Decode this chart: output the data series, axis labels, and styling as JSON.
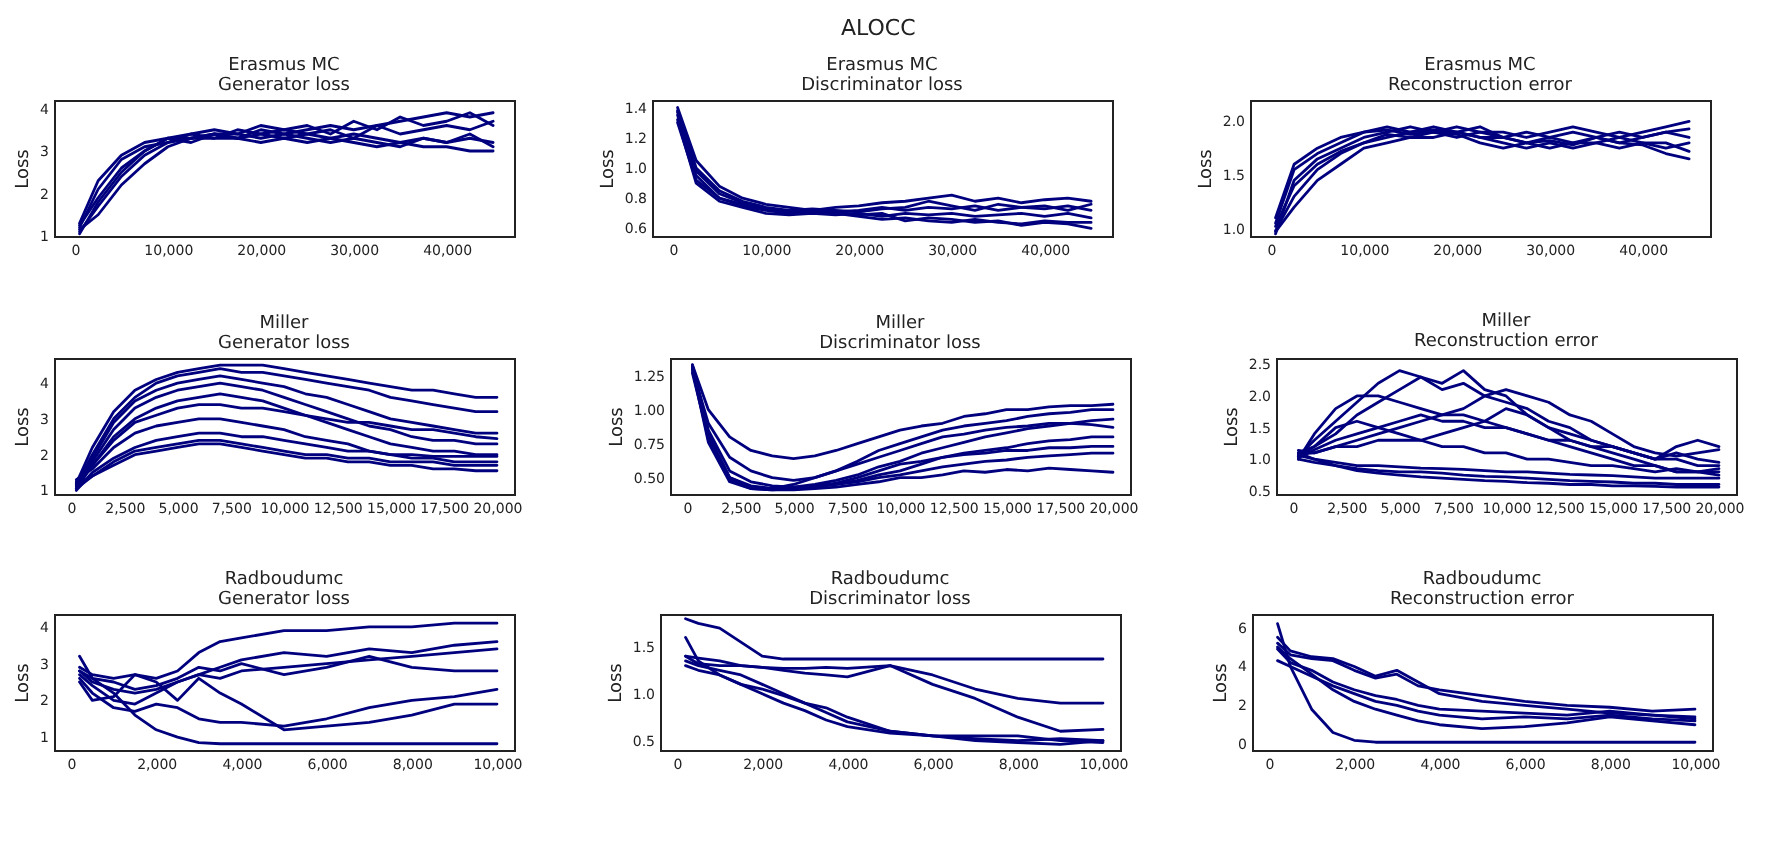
{
  "chart_data": [
    {
      "type": "line",
      "title": "Erasmus MC",
      "subtitle": "Generator loss",
      "ylabel": "Loss",
      "annotations": [
        "ALOCC"
      ],
      "x": [
        500,
        2500,
        5000,
        7500,
        10000,
        12500,
        15000,
        17500,
        20000,
        22500,
        25000,
        27500,
        30000,
        32500,
        35000,
        37500,
        40000,
        42500,
        45000
      ],
      "xlim": [
        -2250,
        47250
      ],
      "xticks": [
        {
          "value": 0,
          "label": "0"
        },
        {
          "value": 10000,
          "label": "10,000"
        },
        {
          "value": 20000,
          "label": "20,000"
        },
        {
          "value": 30000,
          "label": "30,000"
        },
        {
          "value": 40000,
          "label": "40,000"
        }
      ],
      "ylim": [
        1,
        4.2
      ],
      "yticks": [
        1,
        2,
        3,
        4
      ],
      "series": [
        {
          "color": "#00007f",
          "values": [
            1.25,
            1.9,
            2.6,
            3.0,
            3.3,
            3.3,
            3.4,
            3.3,
            3.5,
            3.4,
            3.5,
            3.6,
            3.5,
            3.6,
            3.7,
            3.8,
            3.9,
            3.8,
            3.9
          ]
        },
        {
          "color": "#00007f",
          "values": [
            1.1,
            1.7,
            2.4,
            2.9,
            3.2,
            3.4,
            3.3,
            3.5,
            3.4,
            3.3,
            3.4,
            3.3,
            3.2,
            3.1,
            3.2,
            3.1,
            3.1,
            3.0,
            3.0
          ]
        },
        {
          "color": "#00007f",
          "values": [
            1.2,
            2.1,
            2.8,
            3.1,
            3.2,
            3.3,
            3.3,
            3.3,
            3.4,
            3.5,
            3.4,
            3.5,
            3.3,
            3.6,
            3.4,
            3.5,
            3.6,
            3.5,
            3.7
          ]
        },
        {
          "color": "#00007f",
          "values": [
            1.15,
            1.5,
            2.2,
            2.7,
            3.1,
            3.3,
            3.4,
            3.3,
            3.2,
            3.3,
            3.2,
            3.3,
            3.4,
            3.3,
            3.2,
            3.3,
            3.2,
            3.3,
            3.2
          ]
        },
        {
          "color": "#00007f",
          "values": [
            1.3,
            2.3,
            2.9,
            3.2,
            3.3,
            3.2,
            3.4,
            3.4,
            3.6,
            3.5,
            3.6,
            3.4,
            3.7,
            3.5,
            3.8,
            3.6,
            3.7,
            3.9,
            3.6
          ]
        },
        {
          "color": "#00007f",
          "values": [
            1.05,
            1.8,
            2.5,
            3.0,
            3.3,
            3.4,
            3.5,
            3.4,
            3.3,
            3.4,
            3.3,
            3.2,
            3.3,
            3.2,
            3.1,
            3.3,
            3.2,
            3.4,
            3.1
          ]
        }
      ]
    },
    {
      "type": "line",
      "title": "Erasmus MC",
      "subtitle": "Discriminator loss",
      "ylabel": "Loss",
      "x": [
        500,
        2500,
        5000,
        7500,
        10000,
        12500,
        15000,
        17500,
        20000,
        22500,
        25000,
        27500,
        30000,
        32500,
        35000,
        37500,
        40000,
        42500,
        45000
      ],
      "xlim": [
        -2250,
        47250
      ],
      "xticks": [
        {
          "value": 0,
          "label": "0"
        },
        {
          "value": 10000,
          "label": "10,000"
        },
        {
          "value": 20000,
          "label": "20,000"
        },
        {
          "value": 30000,
          "label": "30,000"
        },
        {
          "value": 40000,
          "label": "40,000"
        }
      ],
      "ylim": [
        0.55,
        1.45
      ],
      "yticks": [
        0.6,
        0.8,
        {
          "value": 1,
          "label": "1.0"
        },
        1.2,
        1.4
      ],
      "series": [
        {
          "color": "#00007f",
          "values": [
            1.38,
            1.0,
            0.85,
            0.78,
            0.74,
            0.72,
            0.73,
            0.72,
            0.71,
            0.73,
            0.74,
            0.78,
            0.75,
            0.72,
            0.76,
            0.74,
            0.73,
            0.75,
            0.72
          ]
        },
        {
          "color": "#00007f",
          "values": [
            1.35,
            0.95,
            0.8,
            0.75,
            0.72,
            0.7,
            0.71,
            0.7,
            0.68,
            0.66,
            0.67,
            0.65,
            0.64,
            0.66,
            0.64,
            0.63,
            0.65,
            0.64,
            0.64
          ]
        },
        {
          "color": "#00007f",
          "values": [
            1.4,
            1.05,
            0.88,
            0.8,
            0.76,
            0.74,
            0.72,
            0.74,
            0.75,
            0.77,
            0.78,
            0.8,
            0.82,
            0.78,
            0.8,
            0.77,
            0.79,
            0.8,
            0.78
          ]
        },
        {
          "color": "#00007f",
          "values": [
            1.32,
            0.9,
            0.78,
            0.74,
            0.7,
            0.69,
            0.7,
            0.69,
            0.7,
            0.68,
            0.7,
            0.69,
            0.7,
            0.68,
            0.69,
            0.7,
            0.68,
            0.7,
            0.67
          ]
        },
        {
          "color": "#00007f",
          "values": [
            1.37,
            0.98,
            0.83,
            0.77,
            0.73,
            0.71,
            0.72,
            0.71,
            0.72,
            0.74,
            0.72,
            0.74,
            0.73,
            0.75,
            0.72,
            0.74,
            0.75,
            0.72,
            0.76
          ]
        },
        {
          "color": "#00007f",
          "values": [
            1.3,
            0.92,
            0.8,
            0.76,
            0.73,
            0.71,
            0.7,
            0.71,
            0.69,
            0.7,
            0.65,
            0.67,
            0.66,
            0.64,
            0.65,
            0.62,
            0.64,
            0.63,
            0.6
          ]
        }
      ]
    },
    {
      "type": "line",
      "title": "Erasmus MC",
      "subtitle": "Reconstruction error",
      "ylabel": "Loss",
      "x": [
        500,
        2500,
        5000,
        7500,
        10000,
        12500,
        15000,
        17500,
        20000,
        22500,
        25000,
        27500,
        30000,
        32500,
        35000,
        37500,
        40000,
        42500,
        45000
      ],
      "xlim": [
        -2250,
        47250
      ],
      "xticks": [
        {
          "value": 0,
          "label": "0"
        },
        {
          "value": 10000,
          "label": "10,000"
        },
        {
          "value": 20000,
          "label": "20,000"
        },
        {
          "value": 30000,
          "label": "30,000"
        },
        {
          "value": 40000,
          "label": "40,000"
        }
      ],
      "ylim": [
        0.93,
        2.2
      ],
      "yticks": [
        {
          "value": 1,
          "label": "1.0"
        },
        1.5,
        {
          "value": 2,
          "label": "2.0"
        }
      ],
      "series": [
        {
          "color": "#00007f",
          "values": [
            0.95,
            1.45,
            1.65,
            1.75,
            1.85,
            1.9,
            1.95,
            1.9,
            1.85,
            1.9,
            1.85,
            1.8,
            1.85,
            1.8,
            1.85,
            1.8,
            1.85,
            1.9,
            1.85
          ]
        },
        {
          "color": "#00007f",
          "values": [
            0.98,
            1.3,
            1.55,
            1.7,
            1.8,
            1.85,
            1.9,
            1.95,
            1.9,
            1.85,
            1.8,
            1.75,
            1.8,
            1.75,
            1.8,
            1.85,
            1.8,
            1.75,
            1.8
          ]
        },
        {
          "color": "#00007f",
          "values": [
            1.05,
            1.55,
            1.7,
            1.8,
            1.9,
            1.92,
            1.88,
            1.9,
            1.95,
            1.9,
            1.9,
            1.85,
            1.9,
            1.95,
            1.9,
            1.85,
            1.9,
            1.95,
            2.0
          ]
        },
        {
          "color": "#00007f",
          "values": [
            0.97,
            1.2,
            1.45,
            1.6,
            1.75,
            1.8,
            1.85,
            1.85,
            1.9,
            1.85,
            1.85,
            1.8,
            1.75,
            1.8,
            1.8,
            1.75,
            1.8,
            1.8,
            1.72
          ]
        },
        {
          "color": "#00007f",
          "values": [
            1.1,
            1.6,
            1.75,
            1.85,
            1.9,
            1.95,
            1.9,
            1.92,
            1.9,
            1.95,
            1.85,
            1.9,
            1.85,
            1.9,
            1.85,
            1.9,
            1.85,
            1.9,
            1.93
          ]
        },
        {
          "color": "#00007f",
          "values": [
            1.02,
            1.4,
            1.6,
            1.72,
            1.8,
            1.88,
            1.85,
            1.9,
            1.88,
            1.8,
            1.75,
            1.8,
            1.82,
            1.78,
            1.85,
            1.8,
            1.78,
            1.7,
            1.65
          ]
        }
      ]
    },
    {
      "type": "line",
      "title": "Miller",
      "subtitle": "Generator loss",
      "ylabel": "Loss",
      "x": [
        250,
        1000,
        2000,
        3000,
        4000,
        5000,
        6000,
        7000,
        8000,
        9000,
        10000,
        11000,
        12000,
        13000,
        14000,
        15000,
        16000,
        17000,
        18000,
        19000,
        20000
      ],
      "xlim": [
        -800,
        20800
      ],
      "xticks": [
        {
          "value": 0,
          "label": "0"
        },
        {
          "value": 2500,
          "label": "2,500"
        },
        {
          "value": 5000,
          "label": "5,000"
        },
        {
          "value": 7500,
          "label": "7,500"
        },
        {
          "value": 10000,
          "label": "10,000"
        },
        {
          "value": 12500,
          "label": "12,500"
        },
        {
          "value": 15000,
          "label": "15,000"
        },
        {
          "value": 17500,
          "label": "17,500"
        },
        {
          "value": 20000,
          "label": "20,000"
        }
      ],
      "ylim": [
        0.9,
        4.7
      ],
      "yticks": [
        1,
        2,
        3,
        4
      ],
      "series": [
        {
          "color": "#00007f",
          "values": [
            1.2,
            2.2,
            3.2,
            3.8,
            4.1,
            4.3,
            4.4,
            4.5,
            4.5,
            4.5,
            4.4,
            4.3,
            4.2,
            4.1,
            4.0,
            3.9,
            3.8,
            3.8,
            3.7,
            3.6,
            3.6
          ]
        },
        {
          "color": "#00007f",
          "values": [
            1.15,
            2.0,
            3.0,
            3.6,
            4.0,
            4.2,
            4.3,
            4.4,
            4.3,
            4.3,
            4.2,
            4.1,
            4.0,
            3.9,
            3.8,
            3.6,
            3.5,
            3.4,
            3.3,
            3.2,
            3.2
          ]
        },
        {
          "color": "#00007f",
          "values": [
            1.25,
            1.9,
            2.9,
            3.5,
            3.8,
            4.0,
            4.1,
            4.2,
            4.1,
            4.0,
            3.9,
            3.7,
            3.6,
            3.4,
            3.2,
            3.0,
            2.9,
            2.8,
            2.7,
            2.6,
            2.6
          ]
        },
        {
          "color": "#00007f",
          "values": [
            1.1,
            1.8,
            2.7,
            3.3,
            3.6,
            3.8,
            3.9,
            4.0,
            3.9,
            3.8,
            3.6,
            3.4,
            3.2,
            3.0,
            2.8,
            2.7,
            2.5,
            2.4,
            2.4,
            2.3,
            2.3
          ]
        },
        {
          "color": "#00007f",
          "values": [
            1.2,
            1.7,
            2.5,
            3.0,
            3.3,
            3.5,
            3.6,
            3.7,
            3.6,
            3.5,
            3.3,
            3.1,
            2.9,
            2.7,
            2.5,
            2.3,
            2.2,
            2.1,
            2.1,
            2.0,
            2.0
          ]
        },
        {
          "color": "#00007f",
          "values": [
            1.05,
            1.7,
            2.4,
            2.9,
            3.1,
            3.3,
            3.4,
            3.4,
            3.3,
            3.3,
            3.2,
            3.1,
            3.0,
            2.9,
            2.9,
            2.8,
            2.7,
            2.7,
            2.6,
            2.5,
            2.45
          ]
        },
        {
          "color": "#00007f",
          "values": [
            1.3,
            1.6,
            2.2,
            2.6,
            2.8,
            2.9,
            3.0,
            3.0,
            2.9,
            2.8,
            2.7,
            2.5,
            2.4,
            2.3,
            2.1,
            2.0,
            1.9,
            1.9,
            1.8,
            1.8,
            1.8
          ]
        },
        {
          "color": "#00007f",
          "values": [
            1.0,
            1.5,
            1.9,
            2.2,
            2.4,
            2.5,
            2.6,
            2.6,
            2.5,
            2.5,
            2.4,
            2.3,
            2.2,
            2.1,
            2.1,
            2.0,
            2.0,
            1.95,
            1.95,
            1.95,
            1.95
          ]
        },
        {
          "color": "#00007f",
          "values": [
            1.15,
            1.4,
            1.8,
            2.1,
            2.2,
            2.3,
            2.4,
            2.4,
            2.3,
            2.2,
            2.1,
            2.0,
            2.0,
            1.9,
            1.9,
            1.8,
            1.8,
            1.8,
            1.7,
            1.7,
            1.7
          ]
        },
        {
          "color": "#00007f",
          "values": [
            1.05,
            1.4,
            1.7,
            2.0,
            2.1,
            2.2,
            2.3,
            2.3,
            2.2,
            2.1,
            2.0,
            1.9,
            1.9,
            1.8,
            1.8,
            1.7,
            1.7,
            1.6,
            1.6,
            1.55,
            1.55
          ]
        }
      ]
    },
    {
      "type": "line",
      "title": "Miller",
      "subtitle": "Discriminator loss",
      "ylabel": "Loss",
      "x": [
        250,
        1000,
        2000,
        3000,
        4000,
        5000,
        6000,
        7000,
        8000,
        9000,
        10000,
        11000,
        12000,
        13000,
        14000,
        15000,
        16000,
        17000,
        18000,
        19000,
        20000
      ],
      "xlim": [
        -800,
        20800
      ],
      "xticks": [
        {
          "value": 0,
          "label": "0"
        },
        {
          "value": 2500,
          "label": "2,500"
        },
        {
          "value": 5000,
          "label": "5,000"
        },
        {
          "value": 7500,
          "label": "7,500"
        },
        {
          "value": 10000,
          "label": "10,000"
        },
        {
          "value": 12500,
          "label": "12,500"
        },
        {
          "value": 15000,
          "label": "15,000"
        },
        {
          "value": 17500,
          "label": "17,500"
        },
        {
          "value": 20000,
          "label": "20,000"
        }
      ],
      "ylim": [
        0.38,
        1.38
      ],
      "yticks": [
        {
          "value": 0.5,
          "label": "0.50"
        },
        0.75,
        {
          "value": 1,
          "label": "1.00"
        },
        1.25
      ],
      "series": [
        {
          "color": "#00007f",
          "values": [
            1.33,
            1.0,
            0.8,
            0.7,
            0.66,
            0.64,
            0.66,
            0.7,
            0.75,
            0.8,
            0.85,
            0.88,
            0.9,
            0.95,
            0.97,
            1.0,
            1.0,
            1.02,
            1.03,
            1.03,
            1.04
          ]
        },
        {
          "color": "#00007f",
          "values": [
            1.3,
            0.9,
            0.65,
            0.55,
            0.5,
            0.48,
            0.5,
            0.55,
            0.62,
            0.7,
            0.75,
            0.8,
            0.85,
            0.88,
            0.9,
            0.92,
            0.95,
            0.97,
            0.98,
            1.0,
            1.0
          ]
        },
        {
          "color": "#00007f",
          "values": [
            1.32,
            0.85,
            0.55,
            0.47,
            0.44,
            0.43,
            0.45,
            0.48,
            0.52,
            0.58,
            0.62,
            0.68,
            0.72,
            0.76,
            0.8,
            0.83,
            0.86,
            0.88,
            0.9,
            0.92,
            0.93
          ]
        },
        {
          "color": "#00007f",
          "values": [
            1.33,
            0.82,
            0.5,
            0.43,
            0.42,
            0.42,
            0.43,
            0.45,
            0.48,
            0.52,
            0.55,
            0.6,
            0.65,
            0.68,
            0.7,
            0.72,
            0.75,
            0.77,
            0.78,
            0.8,
            0.8
          ]
        },
        {
          "color": "#00007f",
          "values": [
            1.3,
            0.8,
            0.5,
            0.44,
            0.42,
            0.43,
            0.44,
            0.46,
            0.5,
            0.55,
            0.6,
            0.62,
            0.65,
            0.67,
            0.68,
            0.7,
            0.7,
            0.72,
            0.72,
            0.73,
            0.73
          ]
        },
        {
          "color": "#00007f",
          "values": [
            1.32,
            0.78,
            0.48,
            0.42,
            0.41,
            0.42,
            0.44,
            0.45,
            0.47,
            0.5,
            0.52,
            0.55,
            0.58,
            0.6,
            0.62,
            0.63,
            0.65,
            0.66,
            0.67,
            0.68,
            0.68
          ]
        },
        {
          "color": "#00007f",
          "values": [
            1.27,
            0.8,
            0.5,
            0.43,
            0.42,
            0.45,
            0.5,
            0.55,
            0.6,
            0.65,
            0.7,
            0.75,
            0.8,
            0.82,
            0.85,
            0.87,
            0.88,
            0.9,
            0.9,
            0.89,
            0.87
          ]
        },
        {
          "color": "#00007f",
          "values": [
            1.3,
            0.76,
            0.47,
            0.42,
            0.41,
            0.41,
            0.42,
            0.43,
            0.45,
            0.47,
            0.5,
            0.5,
            0.52,
            0.55,
            0.54,
            0.56,
            0.55,
            0.57,
            0.56,
            0.55,
            0.54
          ]
        }
      ]
    },
    {
      "type": "line",
      "title": "Miller",
      "subtitle": "Reconstruction error",
      "ylabel": "Loss",
      "x": [
        250,
        1000,
        2000,
        3000,
        4000,
        5000,
        6000,
        7000,
        8000,
        9000,
        10000,
        11000,
        12000,
        13000,
        14000,
        15000,
        16000,
        17000,
        18000,
        19000,
        20000
      ],
      "xlim": [
        -800,
        20800
      ],
      "xticks": [
        {
          "value": 0,
          "label": "0"
        },
        {
          "value": 2500,
          "label": "2,500"
        },
        {
          "value": 5000,
          "label": "5,000"
        },
        {
          "value": 7500,
          "label": "7,500"
        },
        {
          "value": 10000,
          "label": "10,000"
        },
        {
          "value": 12500,
          "label": "12,500"
        },
        {
          "value": 15000,
          "label": "15,000"
        },
        {
          "value": 17500,
          "label": "17,500"
        },
        {
          "value": 20000,
          "label": "20,000"
        }
      ],
      "ylim": [
        0.45,
        2.6
      ],
      "yticks": [
        0.5,
        {
          "value": 1,
          "label": "1.0"
        },
        1.5,
        {
          "value": 2,
          "label": "2.0"
        },
        2.5
      ],
      "series": [
        {
          "color": "#00007f",
          "values": [
            1.05,
            1.3,
            1.6,
            1.9,
            2.2,
            2.4,
            2.3,
            2.1,
            2.2,
            2.0,
            1.9,
            1.8,
            1.6,
            1.5,
            1.3,
            1.2,
            1.1,
            1.0,
            1.0,
            0.9,
            0.9
          ]
        },
        {
          "color": "#00007f",
          "values": [
            1.1,
            1.2,
            1.4,
            1.7,
            1.9,
            2.1,
            2.3,
            2.2,
            2.4,
            2.1,
            2.0,
            1.7,
            1.5,
            1.4,
            1.3,
            1.2,
            1.1,
            1.0,
            1.2,
            1.3,
            1.2
          ]
        },
        {
          "color": "#00007f",
          "values": [
            1.0,
            1.4,
            1.8,
            2.0,
            2.0,
            1.9,
            1.8,
            1.7,
            1.7,
            1.6,
            1.5,
            1.4,
            1.3,
            1.2,
            1.1,
            1.0,
            0.9,
            0.9,
            0.8,
            0.8,
            0.8
          ]
        },
        {
          "color": "#00007f",
          "values": [
            1.14,
            1.1,
            1.2,
            1.3,
            1.4,
            1.5,
            1.6,
            1.7,
            1.8,
            2.0,
            2.1,
            2.0,
            1.9,
            1.7,
            1.6,
            1.4,
            1.2,
            1.1,
            1.05,
            1.1,
            1.15
          ]
        },
        {
          "color": "#00007f",
          "values": [
            1.02,
            1.15,
            1.3,
            1.4,
            1.5,
            1.6,
            1.7,
            1.6,
            1.6,
            1.5,
            1.5,
            1.4,
            1.3,
            1.3,
            1.2,
            1.2,
            1.1,
            1.0,
            1.1,
            1.0,
            0.95
          ]
        },
        {
          "color": "#00007f",
          "values": [
            1.08,
            1.1,
            1.2,
            1.2,
            1.3,
            1.3,
            1.3,
            1.2,
            1.2,
            1.1,
            1.1,
            1.0,
            1.0,
            0.95,
            0.9,
            0.9,
            0.85,
            0.8,
            0.85,
            0.8,
            0.85
          ]
        },
        {
          "color": "#00007f",
          "values": [
            1.06,
            1.0,
            0.95,
            0.9,
            0.9,
            0.88,
            0.86,
            0.85,
            0.84,
            0.82,
            0.8,
            0.8,
            0.78,
            0.76,
            0.75,
            0.74,
            0.72,
            0.7,
            0.7,
            0.7,
            0.7
          ]
        },
        {
          "color": "#00007f",
          "values": [
            1.0,
            0.95,
            0.9,
            0.85,
            0.82,
            0.8,
            0.8,
            0.78,
            0.75,
            0.73,
            0.72,
            0.7,
            0.68,
            0.66,
            0.65,
            0.64,
            0.62,
            0.62,
            0.6,
            0.6,
            0.6
          ]
        },
        {
          "color": "#00007f",
          "values": [
            1.1,
            1.0,
            0.9,
            0.82,
            0.78,
            0.75,
            0.72,
            0.7,
            0.68,
            0.66,
            0.65,
            0.63,
            0.62,
            0.6,
            0.6,
            0.58,
            0.58,
            0.57,
            0.56,
            0.56,
            0.56
          ]
        },
        {
          "color": "#00007f",
          "values": [
            1.04,
            1.2,
            1.5,
            1.6,
            1.5,
            1.4,
            1.3,
            1.4,
            1.5,
            1.6,
            1.8,
            1.7,
            1.5,
            1.3,
            1.2,
            1.1,
            1.0,
            0.9,
            0.8,
            0.8,
            0.75
          ]
        }
      ]
    },
    {
      "type": "line",
      "title": "Radboudumc",
      "subtitle": "Generator loss",
      "ylabel": "Loss",
      "x": [
        200,
        500,
        1000,
        1500,
        2000,
        2500,
        3000,
        3500,
        4000,
        5000,
        6000,
        7000,
        8000,
        9000,
        10000
      ],
      "xlim": [
        -400,
        10400
      ],
      "xticks": [
        {
          "value": 0,
          "label": "0"
        },
        {
          "value": 2000,
          "label": "2,000"
        },
        {
          "value": 4000,
          "label": "4,000"
        },
        {
          "value": 6000,
          "label": "6,000"
        },
        {
          "value": 8000,
          "label": "8,000"
        },
        {
          "value": 10000,
          "label": "10,000"
        }
      ],
      "ylim": [
        0.65,
        4.35
      ],
      "yticks": [
        1,
        2,
        3,
        4
      ],
      "series": [
        {
          "color": "#00007f",
          "values": [
            3.2,
            2.6,
            2.2,
            1.6,
            1.2,
            1.0,
            0.85,
            0.82,
            0.82,
            0.82,
            0.82,
            0.82,
            0.82,
            0.82,
            0.82
          ]
        },
        {
          "color": "#00007f",
          "values": [
            2.9,
            2.7,
            2.6,
            2.7,
            2.6,
            2.8,
            3.3,
            3.6,
            3.7,
            3.9,
            3.9,
            4.0,
            4.0,
            4.1,
            4.1
          ]
        },
        {
          "color": "#00007f",
          "values": [
            2.8,
            2.5,
            2.3,
            2.2,
            2.3,
            2.5,
            2.7,
            2.9,
            3.1,
            3.3,
            3.2,
            3.4,
            3.3,
            3.5,
            3.6
          ]
        },
        {
          "color": "#00007f",
          "values": [
            2.7,
            2.4,
            2.0,
            1.9,
            2.2,
            2.5,
            2.7,
            2.6,
            2.8,
            2.9,
            3.0,
            3.1,
            3.2,
            3.3,
            3.4
          ]
        },
        {
          "color": "#00007f",
          "values": [
            2.6,
            2.2,
            1.8,
            1.7,
            1.9,
            1.8,
            1.5,
            1.4,
            1.4,
            1.3,
            1.5,
            1.8,
            2.0,
            2.1,
            2.3
          ]
        },
        {
          "color": "#00007f",
          "values": [
            2.5,
            2.0,
            2.1,
            2.7,
            2.5,
            2.0,
            2.6,
            2.2,
            1.9,
            1.2,
            1.3,
            1.4,
            1.6,
            1.9,
            1.9
          ]
        },
        {
          "color": "#00007f",
          "values": [
            2.8,
            2.6,
            2.5,
            2.3,
            2.4,
            2.6,
            2.9,
            2.8,
            3.0,
            2.7,
            2.9,
            3.2,
            2.9,
            2.8,
            2.8
          ]
        }
      ]
    },
    {
      "type": "line",
      "title": "Radboudumc",
      "subtitle": "Discriminator loss",
      "ylabel": "Loss",
      "x": [
        200,
        500,
        1000,
        1500,
        2000,
        2500,
        3000,
        3500,
        4000,
        5000,
        6000,
        7000,
        8000,
        9000,
        10000
      ],
      "xlim": [
        -400,
        10400
      ],
      "xticks": [
        {
          "value": 0,
          "label": "0"
        },
        {
          "value": 2000,
          "label": "2,000"
        },
        {
          "value": 4000,
          "label": "4,000"
        },
        {
          "value": 6000,
          "label": "6,000"
        },
        {
          "value": 8000,
          "label": "8,000"
        },
        {
          "value": 10000,
          "label": "10,000"
        }
      ],
      "ylim": [
        0.4,
        1.85
      ],
      "yticks": [
        0.5,
        {
          "value": 1,
          "label": "1.0"
        },
        1.5
      ],
      "series": [
        {
          "color": "#00007f",
          "values": [
            1.8,
            1.75,
            1.7,
            1.55,
            1.4,
            1.37,
            1.37,
            1.37,
            1.37,
            1.37,
            1.37,
            1.37,
            1.37,
            1.37,
            1.37
          ]
        },
        {
          "color": "#00007f",
          "values": [
            1.4,
            1.38,
            1.35,
            1.3,
            1.28,
            1.27,
            1.27,
            1.28,
            1.27,
            1.3,
            1.2,
            1.05,
            0.95,
            0.9,
            0.9
          ]
        },
        {
          "color": "#00007f",
          "values": [
            1.35,
            1.3,
            1.25,
            1.2,
            1.1,
            1.0,
            0.9,
            0.8,
            0.7,
            0.6,
            0.55,
            0.52,
            0.5,
            0.52,
            0.5
          ]
        },
        {
          "color": "#00007f",
          "values": [
            1.3,
            1.25,
            1.2,
            1.1,
            1.0,
            0.9,
            0.82,
            0.72,
            0.65,
            0.58,
            0.55,
            0.55,
            0.55,
            0.5,
            0.48
          ]
        },
        {
          "color": "#00007f",
          "values": [
            1.4,
            1.32,
            1.3,
            1.3,
            1.28,
            1.25,
            1.22,
            1.2,
            1.18,
            1.3,
            1.1,
            0.95,
            0.75,
            0.6,
            0.62
          ]
        },
        {
          "color": "#00007f",
          "values": [
            1.6,
            1.35,
            1.2,
            1.1,
            1.05,
            0.98,
            0.9,
            0.85,
            0.75,
            0.6,
            0.55,
            0.5,
            0.48,
            0.46,
            0.5
          ]
        }
      ]
    },
    {
      "type": "line",
      "title": "Radboudumc",
      "subtitle": "Reconstruction error",
      "ylabel": "Loss",
      "x": [
        200,
        500,
        1000,
        1500,
        2000,
        2500,
        3000,
        3500,
        4000,
        5000,
        6000,
        7000,
        8000,
        9000,
        10000
      ],
      "xlim": [
        -400,
        10400
      ],
      "xticks": [
        {
          "value": 0,
          "label": "0"
        },
        {
          "value": 2000,
          "label": "2,000"
        },
        {
          "value": 4000,
          "label": "4,000"
        },
        {
          "value": 6000,
          "label": "6,000"
        },
        {
          "value": 8000,
          "label": "8,000"
        },
        {
          "value": 10000,
          "label": "10,000"
        }
      ],
      "ylim": [
        -0.3,
        6.7
      ],
      "yticks": [
        0,
        2,
        4,
        6
      ],
      "series": [
        {
          "color": "#00007f",
          "values": [
            6.2,
            4.0,
            1.8,
            0.6,
            0.2,
            0.1,
            0.1,
            0.1,
            0.1,
            0.1,
            0.1,
            0.1,
            0.1,
            0.1,
            0.1
          ]
        },
        {
          "color": "#00007f",
          "values": [
            5.5,
            4.8,
            4.5,
            4.4,
            4.0,
            3.5,
            3.8,
            3.2,
            2.6,
            2.2,
            2.0,
            1.8,
            1.6,
            1.5,
            1.4
          ]
        },
        {
          "color": "#00007f",
          "values": [
            5.2,
            4.6,
            4.4,
            4.3,
            3.8,
            3.4,
            3.6,
            3.0,
            2.8,
            2.5,
            2.2,
            2.0,
            1.9,
            1.7,
            1.8
          ]
        },
        {
          "color": "#00007f",
          "values": [
            4.9,
            4.2,
            3.8,
            3.2,
            2.8,
            2.5,
            2.3,
            2.0,
            1.8,
            1.7,
            1.6,
            1.5,
            1.7,
            1.5,
            1.3
          ]
        },
        {
          "color": "#00007f",
          "values": [
            4.3,
            4.0,
            3.5,
            3.0,
            2.6,
            2.2,
            2.0,
            1.7,
            1.5,
            1.3,
            1.4,
            1.3,
            1.5,
            1.3,
            1.2
          ]
        },
        {
          "color": "#00007f",
          "values": [
            5.0,
            4.4,
            3.6,
            2.8,
            2.2,
            1.8,
            1.5,
            1.2,
            1.0,
            0.8,
            0.9,
            1.1,
            1.4,
            1.2,
            1.0
          ]
        }
      ]
    }
  ]
}
